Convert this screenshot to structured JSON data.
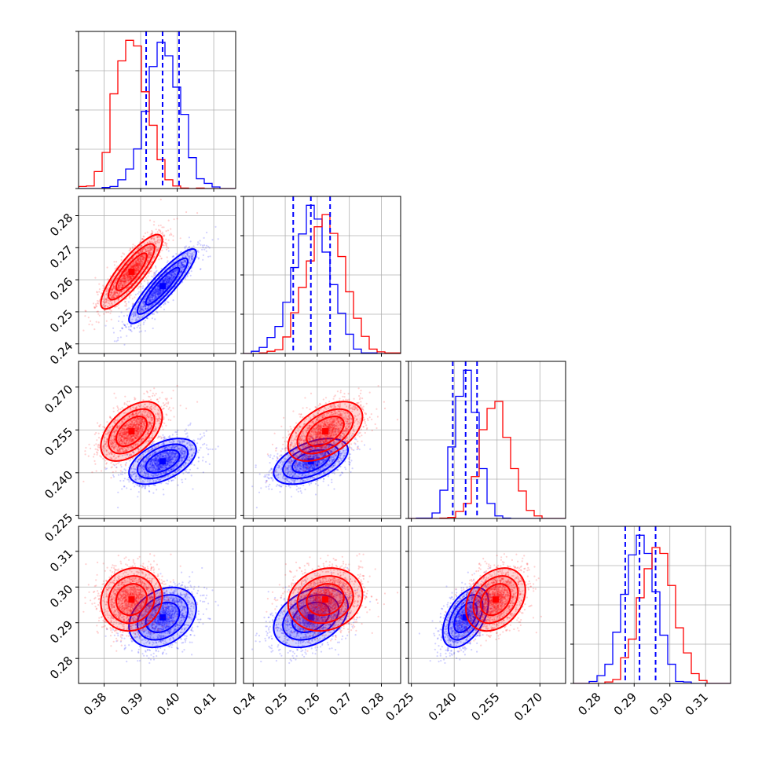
{
  "chart_data": {
    "type": "corner",
    "grid": true,
    "colors": {
      "blue": "#0000ff",
      "red": "#ff0000"
    },
    "parameters": [
      {
        "range": [
          0.373,
          0.416
        ],
        "ticks": [
          "0.38",
          "0.39",
          "0.40",
          "0.41"
        ]
      },
      {
        "range": [
          0.237,
          0.286
        ],
        "ticks": [
          "0.24",
          "0.25",
          "0.26",
          "0.27",
          "0.28"
        ]
      },
      {
        "range": [
          0.224,
          0.279
        ],
        "ticks": [
          "0.225",
          "0.240",
          "0.255",
          "0.270"
        ]
      },
      {
        "range": [
          0.273,
          0.317
        ],
        "ticks": [
          "0.28",
          "0.29",
          "0.30",
          "0.31"
        ]
      }
    ],
    "series": [
      {
        "color": "blue",
        "mean": [
          0.396,
          0.258,
          0.244,
          0.2915
        ],
        "sd": [
          0.0046,
          0.0058,
          0.004,
          0.0042
        ],
        "quantiles": [
          [
            0.3915,
            0.396,
            0.4005
          ],
          [
            0.2525,
            0.258,
            0.264
          ],
          [
            0.2395,
            0.244,
            0.248
          ],
          [
            0.2875,
            0.2915,
            0.296
          ]
        ],
        "corr": [
          [
            1,
            0.9,
            0.5,
            0.3
          ],
          [
            0.9,
            1,
            0.5,
            0.35
          ],
          [
            0.5,
            0.5,
            1,
            0.5
          ],
          [
            0.3,
            0.35,
            0.5,
            1
          ]
        ]
      },
      {
        "color": "red",
        "mean": [
          0.3875,
          0.2625,
          0.2545,
          0.2965
        ],
        "sd": [
          0.0042,
          0.0058,
          0.0052,
          0.0044
        ],
        "corr": [
          [
            1,
            0.85,
            0.5,
            0.1
          ],
          [
            0.85,
            1,
            0.5,
            0.15
          ],
          [
            0.5,
            0.5,
            1,
            0.3
          ],
          [
            0.1,
            0.15,
            0.3,
            1
          ]
        ]
      }
    ],
    "quantile_lines": {
      "color": "blue",
      "style": "dashed"
    }
  }
}
